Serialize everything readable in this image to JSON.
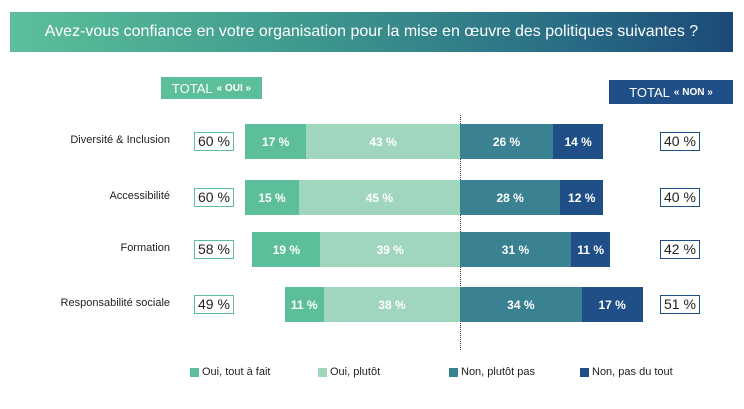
{
  "title": "Avez-vous confiance en votre organisation pour la mise en œuvre des politiques suivantes ?",
  "total_oui": {
    "prefix": "TOTAL",
    "label": "« OUI »"
  },
  "total_non": {
    "prefix": "TOTAL",
    "label": "« NON »"
  },
  "chart_data": {
    "type": "bar",
    "orientation": "diverging-horizontal-stacked",
    "title": "Avez-vous confiance en votre organisation pour la mise en œuvre des politiques suivantes ?",
    "categories": [
      "Diversité & Inclusion",
      "Accessibilité",
      "Formation",
      "Responsabilité sociale"
    ],
    "series": [
      {
        "name": "Oui, tout à fait",
        "color": "#5cbf9a",
        "values": [
          17,
          15,
          19,
          11
        ],
        "labels": [
          "17 %",
          "15 %",
          "19 %",
          "11 %"
        ]
      },
      {
        "name": "Oui, plutôt",
        "color": "#9fd6bd",
        "values": [
          43,
          45,
          39,
          38
        ],
        "labels": [
          "43 %",
          "45 %",
          "39 %",
          "38 %"
        ]
      },
      {
        "name": "Non, plutôt pas",
        "color": "#3a8191",
        "values": [
          26,
          28,
          31,
          34
        ],
        "labels": [
          "26 %",
          "28 %",
          "31 %",
          "34 %"
        ]
      },
      {
        "name": "Non, pas du tout",
        "color": "#1f4f86",
        "values": [
          14,
          12,
          11,
          17
        ],
        "labels": [
          "14 %",
          "12 %",
          "11 %",
          "17 %"
        ]
      }
    ],
    "total_oui": [
      "60 %",
      "60 %",
      "58 %",
      "49 %"
    ],
    "total_non": [
      "40 %",
      "40 %",
      "42 %",
      "51 %"
    ],
    "legend_position": "bottom"
  }
}
